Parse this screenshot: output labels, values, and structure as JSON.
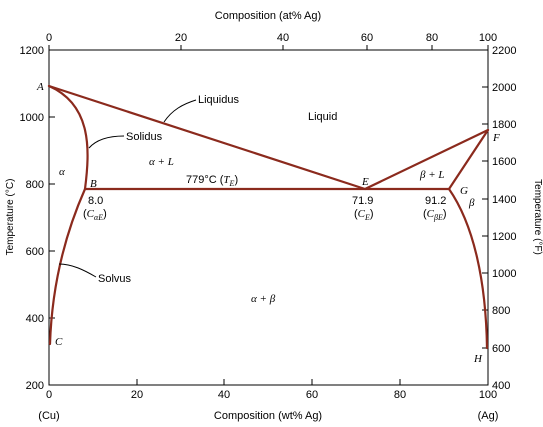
{
  "top_axis": {
    "title": "Composition (at% Ag)",
    "ticks": [
      "0",
      "20",
      "40",
      "60",
      "80",
      "100"
    ]
  },
  "bottom_axis": {
    "title": "Composition (wt% Ag)",
    "ticks": [
      "0",
      "20",
      "40",
      "60",
      "80",
      "100"
    ],
    "left_end": "(Cu)",
    "right_end": "(Ag)"
  },
  "left_axis": {
    "title": "Temperature (°C)",
    "ticks": [
      "200",
      "400",
      "600",
      "800",
      "1000",
      "1200"
    ]
  },
  "right_axis": {
    "title": "Temperature (°F)",
    "ticks": [
      "400",
      "600",
      "800",
      "1000",
      "1200",
      "1400",
      "1600",
      "1800",
      "2000",
      "2200"
    ]
  },
  "labels": {
    "liquidus": "Liquidus",
    "solidus": "Solidus",
    "solvus": "Solvus",
    "liquid": "Liquid",
    "alpha": "α",
    "beta": "β",
    "alpha_plus_L": "α + L",
    "beta_plus_L": "β + L",
    "alpha_plus_beta": "α + β",
    "eutectic_temp": "779°C (",
    "eutectic_temp_sym": "T",
    "eutectic_temp_sub": "E",
    "eutectic_temp_close": ")",
    "point_a": "A",
    "point_b": "B",
    "point_c": "C",
    "point_e": "E",
    "point_f": "F",
    "point_g": "G",
    "point_h": "H",
    "val_b": "8.0",
    "val_e": "71.9",
    "val_g": "91.2",
    "ce_open": "(",
    "ce_sym": "C",
    "ce_sub": "E",
    "ce_close": ")",
    "cae_sym": "C",
    "cae_sub": "αE",
    "cbe_sym": "C",
    "cbe_sub": "βE"
  },
  "chart_data": {
    "type": "phase-diagram",
    "title": "",
    "xlabel": "Composition (wt% Ag)",
    "x2label": "Composition (at% Ag)",
    "ylabel": "Temperature (°C)",
    "y2label": "Temperature (°F)",
    "xlim": [
      0,
      100
    ],
    "ylim": [
      200,
      1200
    ],
    "y2lim": [
      400,
      2200
    ],
    "points": {
      "A": [
        0,
        1085
      ],
      "B": [
        8.0,
        779
      ],
      "C": [
        0,
        330
      ],
      "E": [
        71.9,
        779
      ],
      "F": [
        100,
        962
      ],
      "G": [
        91.2,
        779
      ],
      "H": [
        100,
        310
      ]
    },
    "eutectic_temperature": 779,
    "curves": {
      "liquidus": [
        [
          0,
          1085
        ],
        [
          71.9,
          779
        ],
        [
          100,
          962
        ]
      ],
      "solidus": [
        [
          0,
          1085
        ],
        [
          8.0,
          779
        ],
        [
          91.2,
          779
        ],
        [
          100,
          962
        ]
      ],
      "solvus_alpha": [
        [
          8.0,
          779
        ],
        [
          0,
          330
        ]
      ],
      "solvus_beta": [
        [
          91.2,
          779
        ],
        [
          100,
          310
        ]
      ]
    },
    "colors": {
      "curves": "#8b2a1d"
    }
  }
}
